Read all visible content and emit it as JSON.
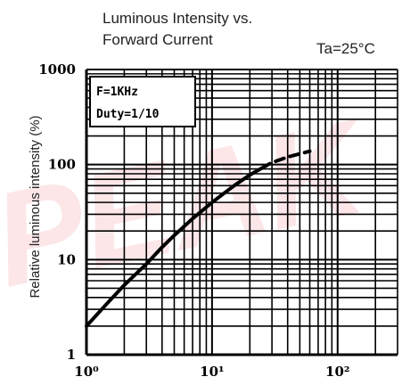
{
  "watermark": {
    "text": "PEAK",
    "color": "#e8404a"
  },
  "chart_data": {
    "type": "line",
    "title_line1": "Luminous Intensity vs.",
    "title_line2": "Forward Current",
    "condition": "Ta=25°C",
    "ylabel": "Relative luminous intensity (%)",
    "xlabel": "",
    "x_scale": "log",
    "y_scale": "log",
    "xlim": [
      1,
      300
    ],
    "ylim": [
      1,
      1000
    ],
    "x_tick_labels": [
      "10⁰",
      "10¹",
      "10²"
    ],
    "y_tick_labels": [
      "1",
      "10",
      "100",
      "1000"
    ],
    "grid": true,
    "annotation_lines": [
      "F=1KHz",
      "Duty=1/10"
    ],
    "series": [
      {
        "style": "solid",
        "x": [
          1,
          1.5,
          2,
          3,
          4,
          5,
          7,
          10,
          15,
          20,
          25
        ],
        "y": [
          2,
          3.6,
          5.4,
          9,
          13.5,
          18,
          27,
          40,
          60,
          78,
          92
        ]
      },
      {
        "style": "dashed",
        "x": [
          25,
          30,
          40,
          50,
          60
        ],
        "y": [
          92,
          105,
          120,
          130,
          138
        ]
      }
    ]
  }
}
